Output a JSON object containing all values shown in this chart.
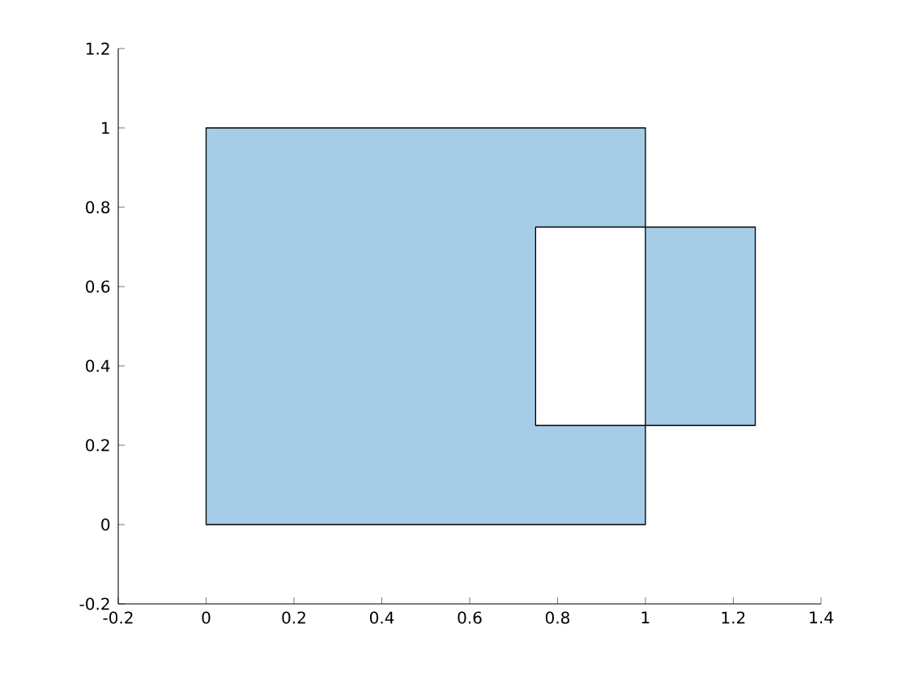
{
  "chart_data": {
    "type": "area",
    "series": [
      {
        "color": "#a6cde8",
        "x": [
          0,
          1,
          1,
          0.75,
          0.75,
          1,
          1,
          1.25,
          1.25,
          1,
          1,
          0
        ],
        "values": [
          0,
          0,
          0.25,
          0.25,
          0.75,
          0.75,
          0.25,
          0.25,
          0.75,
          0.75,
          1,
          1
        ]
      }
    ],
    "xlim": [
      -0.2,
      1.4
    ],
    "ylim": [
      -0.2,
      1.2
    ],
    "xticks": [
      -0.2,
      0,
      0.2,
      0.4,
      0.6,
      0.8,
      1,
      1.2,
      1.4
    ],
    "yticks": [
      -0.2,
      0,
      0.2,
      0.4,
      0.6,
      0.8,
      1,
      1.2
    ],
    "grid": false
  }
}
